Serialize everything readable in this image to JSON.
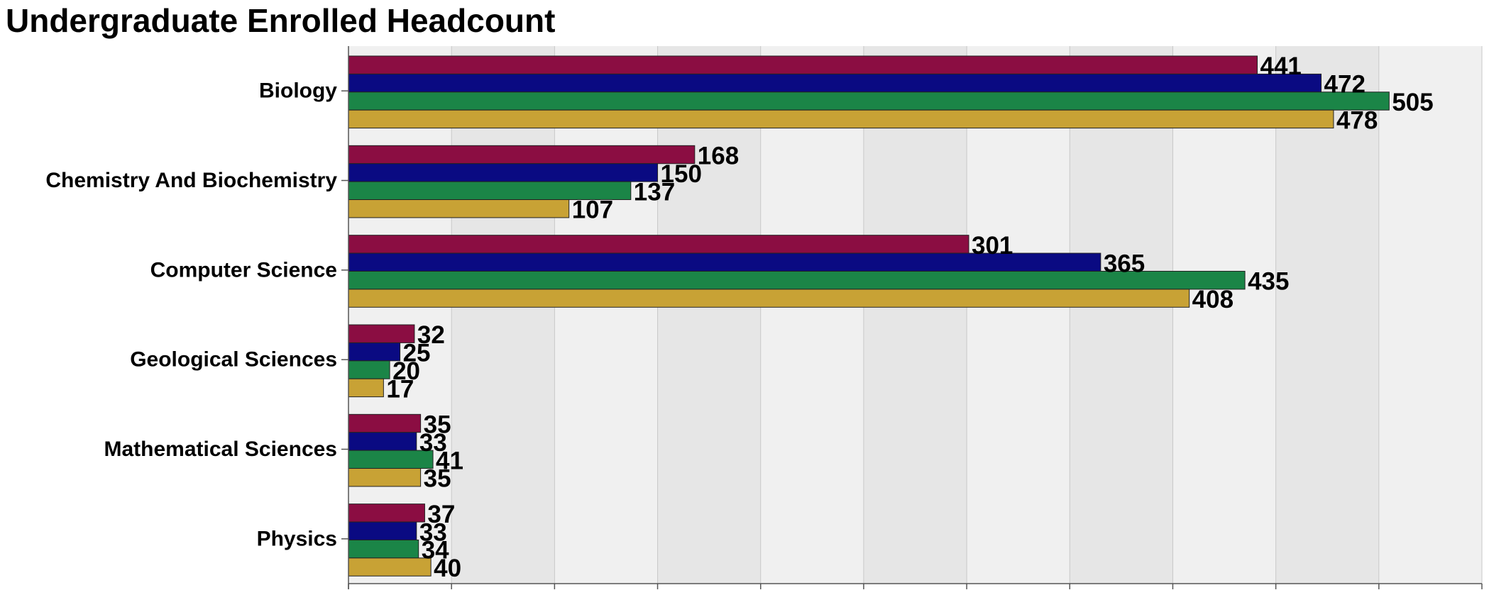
{
  "chart_data": {
    "type": "bar",
    "orientation": "horizontal",
    "title": "Undergraduate Enrolled Headcount",
    "xlabel": "",
    "ylabel": "",
    "categories": [
      "Biology",
      "Chemistry And Biochemistry",
      "Computer Science",
      "Geological Sciences",
      "Mathematical Sciences",
      "Physics"
    ],
    "series": [
      {
        "values": [
          441,
          168,
          301,
          32,
          35,
          37
        ],
        "color": "#8b0d42"
      },
      {
        "values": [
          472,
          150,
          365,
          25,
          33,
          33
        ],
        "color": "#0a0a82"
      },
      {
        "values": [
          505,
          137,
          435,
          20,
          41,
          34
        ],
        "color": "#1b8547"
      },
      {
        "values": [
          478,
          107,
          408,
          17,
          35,
          40
        ],
        "color": "#c8a235"
      }
    ],
    "xlim": [
      0,
      550
    ],
    "x_tick_step": 50,
    "show_x_tick_labels": false,
    "grid": true,
    "alternating_band_colors": [
      "#f0f0f0",
      "#e6e6e6"
    ],
    "gridline_color": "#c8c8c8",
    "data_labels": true,
    "legend": "none"
  }
}
